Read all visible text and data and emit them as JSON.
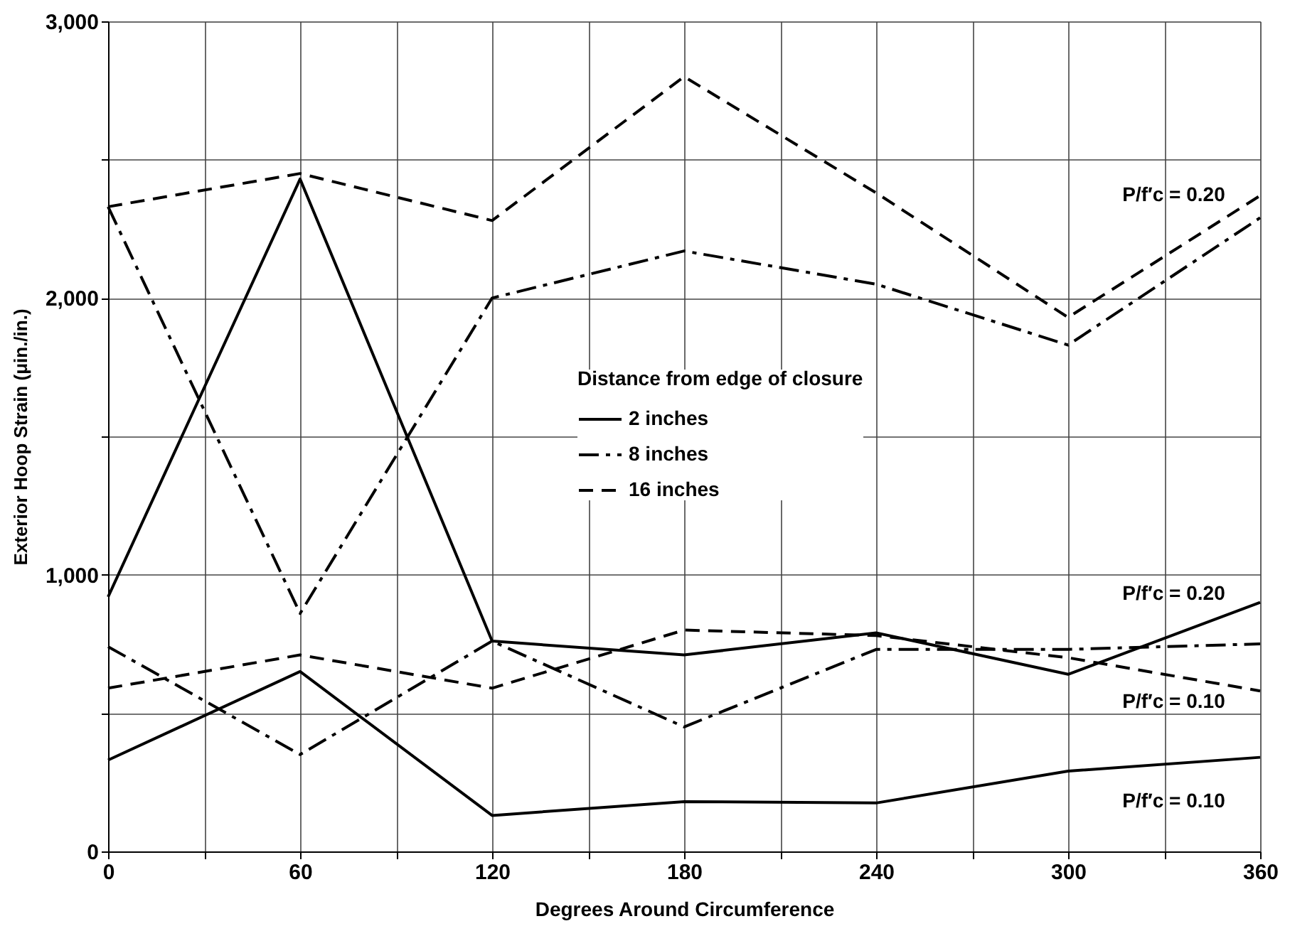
{
  "chart_data": {
    "type": "line",
    "xlabel": "Degrees Around Circumference",
    "ylabel": "Exterior Hoop Strain (μin./in.)",
    "legend_title": "Distance from edge of closure",
    "x": [
      0,
      60,
      120,
      180,
      240,
      300,
      360
    ],
    "series": [
      {
        "name": "2 inches",
        "color": "#000000",
        "line_style": "solid",
        "values": [
          920,
          2430,
          760,
          710,
          790,
          640,
          900
        ]
      },
      {
        "name": "8 inches",
        "color": "#000000",
        "line_style": "dashdot",
        "values": [
          2330,
          860,
          2000,
          2170,
          2050,
          1830,
          2290
        ]
      },
      {
        "name": "16 inches",
        "color": "#000000",
        "line_style": "dashed",
        "values": [
          2330,
          2450,
          2280,
          2800,
          2380,
          1930,
          2370
        ]
      },
      {
        "color": "#000000",
        "line_style": "solid",
        "values": [
          330,
          650,
          130,
          180,
          175,
          290,
          340
        ]
      },
      {
        "color": "#000000",
        "line_style": "dashdot",
        "values": [
          740,
          350,
          760,
          450,
          730,
          730,
          750
        ]
      },
      {
        "color": "#000000",
        "line_style": "dashed",
        "values": [
          590,
          710,
          590,
          800,
          780,
          700,
          580
        ]
      }
    ],
    "annotations": [
      "P/f′c = 0.20",
      "P/f′c = 0.20",
      "P/f′c = 0.10",
      "P/f′c = 0.10"
    ],
    "xlim": [
      0,
      360
    ],
    "ylim": [
      0,
      3000
    ],
    "xticks": [
      0,
      {
        "value": 30,
        "label": null
      },
      60,
      {
        "value": 90,
        "label": null
      },
      120,
      {
        "value": 150,
        "label": null
      },
      180,
      {
        "value": 210,
        "label": null
      },
      240,
      {
        "value": 270,
        "label": null
      },
      300,
      {
        "value": 330,
        "label": null
      },
      360
    ],
    "yticks": [
      0,
      {
        "value": 500,
        "label": null
      },
      {
        "value": 1000,
        "label": "1,000"
      },
      {
        "value": 1500,
        "label": null
      },
      {
        "value": 2000,
        "label": "2,000"
      },
      {
        "value": 2500,
        "label": null
      },
      {
        "value": 3000,
        "label": "3,000"
      }
    ],
    "grid": true,
    "legend": "right",
    "marker": "none"
  }
}
